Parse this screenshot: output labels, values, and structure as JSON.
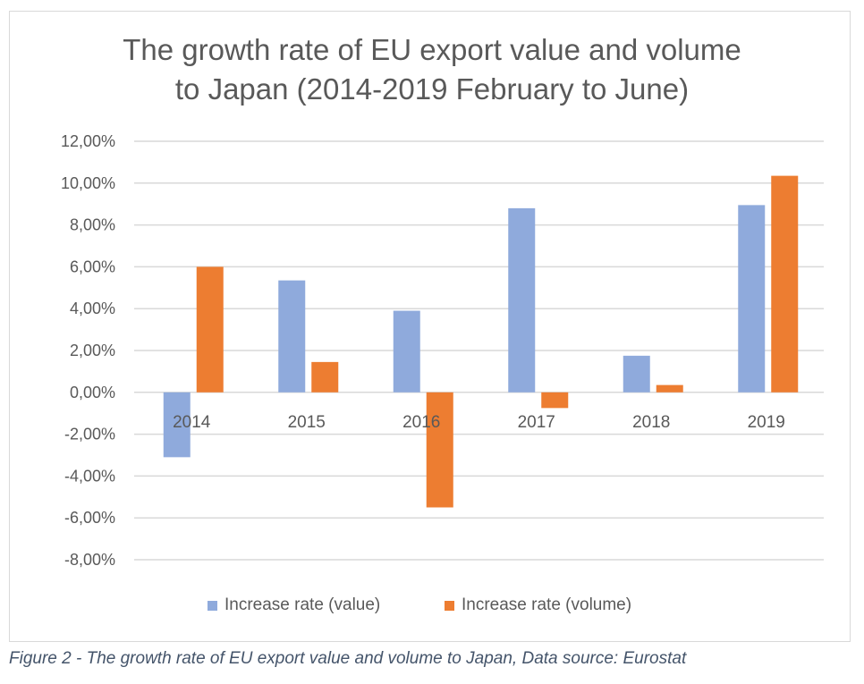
{
  "chart_data": {
    "type": "bar",
    "title": "The growth rate of EU export value and volume\nto Japan (2014-2019 February to June)",
    "categories": [
      "2014",
      "2015",
      "2016",
      "2017",
      "2018",
      "2019"
    ],
    "series": [
      {
        "name": "Increase rate (value)",
        "color": "#8faadc",
        "values": [
          -3.1,
          5.35,
          3.9,
          8.8,
          1.75,
          8.95
        ]
      },
      {
        "name": "Increase rate (volume)",
        "color": "#ed7d31",
        "values": [
          6.0,
          1.45,
          -5.5,
          -0.75,
          0.35,
          10.35
        ]
      }
    ],
    "ylim": [
      -8,
      12
    ],
    "yticks": [
      "-8,00%",
      "-6,00%",
      "-4,00%",
      "-2,00%",
      "0,00%",
      "2,00%",
      "4,00%",
      "6,00%",
      "8,00%",
      "10,00%",
      "12,00%"
    ],
    "grid": true,
    "legend": "bottom"
  },
  "caption": "Figure 2 - The growth rate of EU export value and volume to Japan, Data source: Eurostat"
}
